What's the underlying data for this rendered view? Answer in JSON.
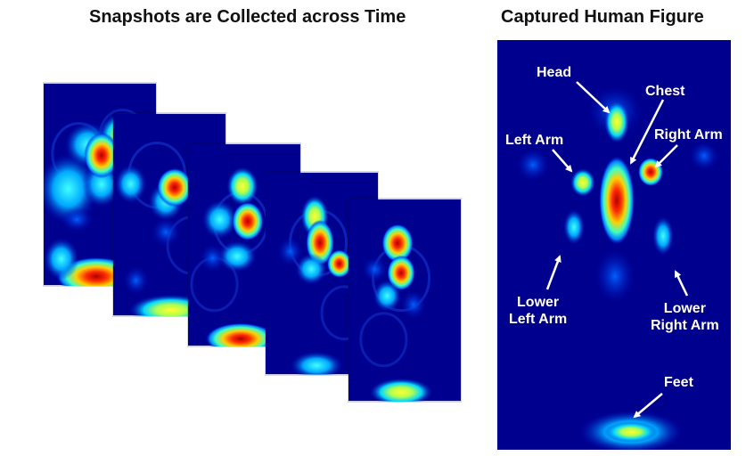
{
  "titles": {
    "left": "Snapshots are Collected across Time",
    "right": "Captured Human Figure"
  },
  "labels": {
    "head": "Head",
    "chest": "Chest",
    "left_arm": "Left Arm",
    "right_arm": "Right Arm",
    "lower_left_arm": "Lower\nLeft Arm",
    "lower_right_arm": "Lower\nRight Arm",
    "feet": "Feet"
  },
  "colors": {
    "background": "#00008f",
    "hot": "#d40000",
    "warm": "#ffff00",
    "cool": "#00e0ff",
    "label_text": "#ffffff"
  },
  "snapshot_count": 5
}
